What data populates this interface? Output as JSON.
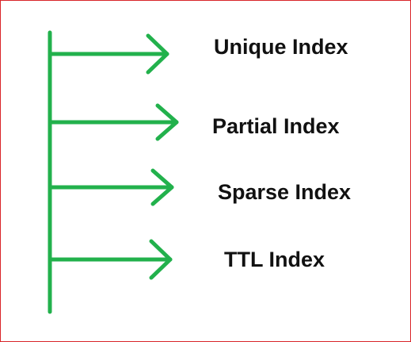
{
  "colors": {
    "frame_border": "#d9252a",
    "arrow_stroke": "#22b14c",
    "text": "#111111",
    "background": "#ffffff"
  },
  "diagram": {
    "items": [
      {
        "label": "Unique Index"
      },
      {
        "label": "Partial Index"
      },
      {
        "label": "Sparse Index"
      },
      {
        "label": "TTL Index"
      }
    ]
  }
}
